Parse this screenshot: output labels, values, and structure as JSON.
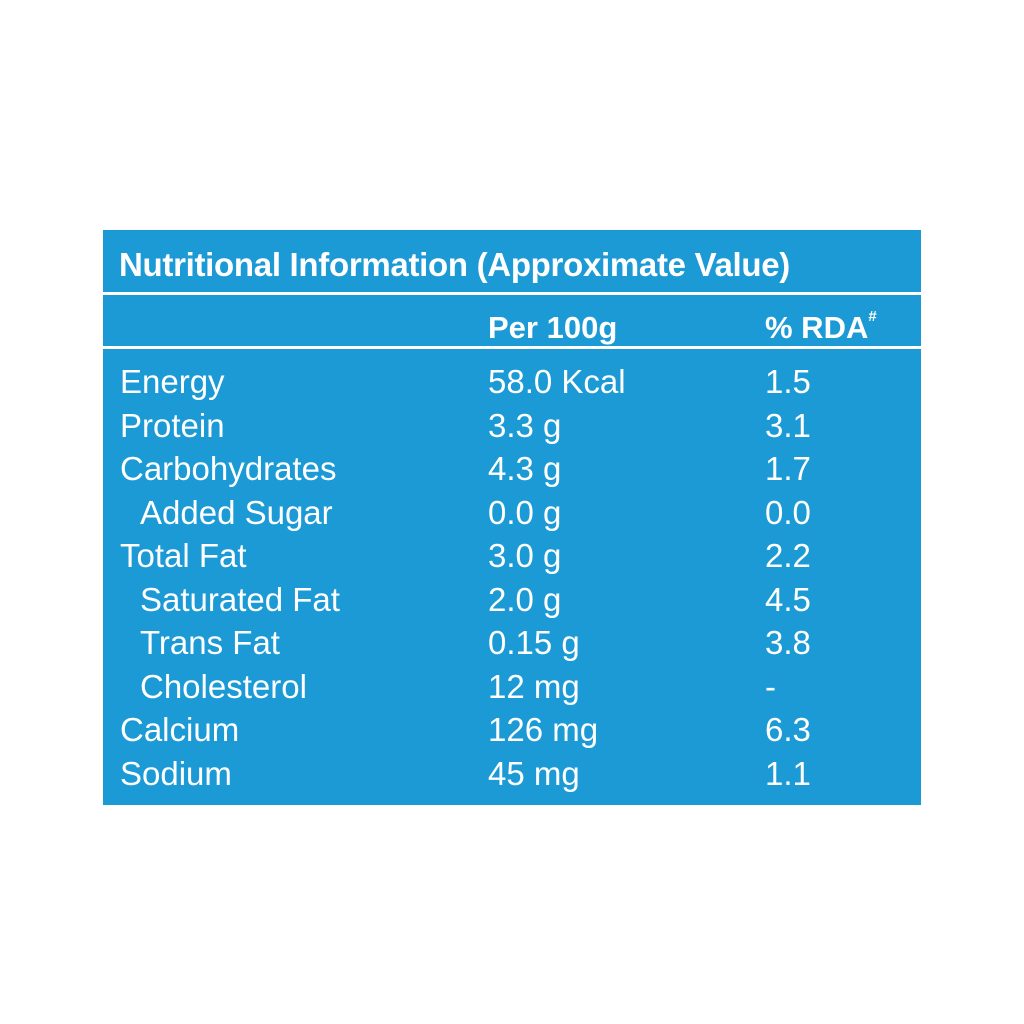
{
  "panel": {
    "title": "Nutritional Information (Approximate Value)",
    "columns": {
      "per": "Per 100g",
      "rda": "% RDA",
      "rda_mark": "#"
    },
    "rows": [
      {
        "name": "Energy",
        "amount": "58.0 Kcal",
        "rda": "1.5"
      },
      {
        "name": "Protein",
        "amount": "3.3 g",
        "rda": "3.1"
      },
      {
        "name": "Carbohydrates",
        "amount": "4.3 g",
        "rda": "1.7"
      },
      {
        "name": "Added Sugar",
        "amount": "0.0 g",
        "rda": "0.0"
      },
      {
        "name": "Total Fat",
        "amount": "3.0 g",
        "rda": "2.2"
      },
      {
        "name": "Saturated Fat",
        "amount": "2.0 g",
        "rda": "4.5"
      },
      {
        "name": "Trans Fat",
        "amount": "0.15 g",
        "rda": "3.8"
      },
      {
        "name": "Cholesterol",
        "amount": "12 mg",
        "rda": "-"
      },
      {
        "name": "Calcium",
        "amount": "126 mg",
        "rda": "6.3"
      },
      {
        "name": "Sodium",
        "amount": "45 mg",
        "rda": "1.1"
      }
    ]
  },
  "colors": {
    "panel_background": "#1b9ad6",
    "text": "#ffffff",
    "page_background": "#ffffff"
  }
}
